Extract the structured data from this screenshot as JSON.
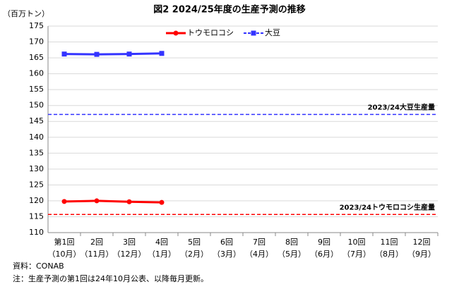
{
  "chart_data": {
    "type": "line",
    "title": "図2 2024/25年度の生産予測の推移",
    "y_axis_label": "（百万トン）",
    "categories": [
      "第1回",
      "2回",
      "3回",
      "4回",
      "5回",
      "6回",
      "7回",
      "8回",
      "9回",
      "10回",
      "11回",
      "12回"
    ],
    "category_months": [
      "（10月）",
      "（11月）",
      "（12月）",
      "（1月）",
      "（2月）",
      "（3月）",
      "（4月）",
      "（5月）",
      "（6月）",
      "（7月）",
      "（8月）",
      "（9月）"
    ],
    "series": [
      {
        "name": "トウモロコシ",
        "color": "#ff0000",
        "marker": "circle",
        "values": [
          119.8,
          120.0,
          119.7,
          119.5,
          null,
          null,
          null,
          null,
          null,
          null,
          null,
          null
        ]
      },
      {
        "name": "大豆",
        "color": "#3333ff",
        "marker": "square",
        "values": [
          166.2,
          166.1,
          166.2,
          166.4,
          null,
          null,
          null,
          null,
          null,
          null,
          null,
          null
        ]
      }
    ],
    "reference_lines": [
      {
        "label": "2023/24大豆生産量",
        "value": 147.2,
        "color": "#3333ff"
      },
      {
        "label": "2023/24トウモロコシ生産量",
        "value": 115.7,
        "color": "#ff0000"
      }
    ],
    "ylim": [
      110,
      175
    ],
    "yticks": [
      110,
      115,
      120,
      125,
      130,
      135,
      140,
      145,
      150,
      155,
      160,
      165,
      170,
      175
    ],
    "grid": true,
    "legend": "top",
    "notes": [
      "資料：CONAB",
      "注：生産予測の第1回は24年10月公表、以降毎月更新。"
    ]
  }
}
